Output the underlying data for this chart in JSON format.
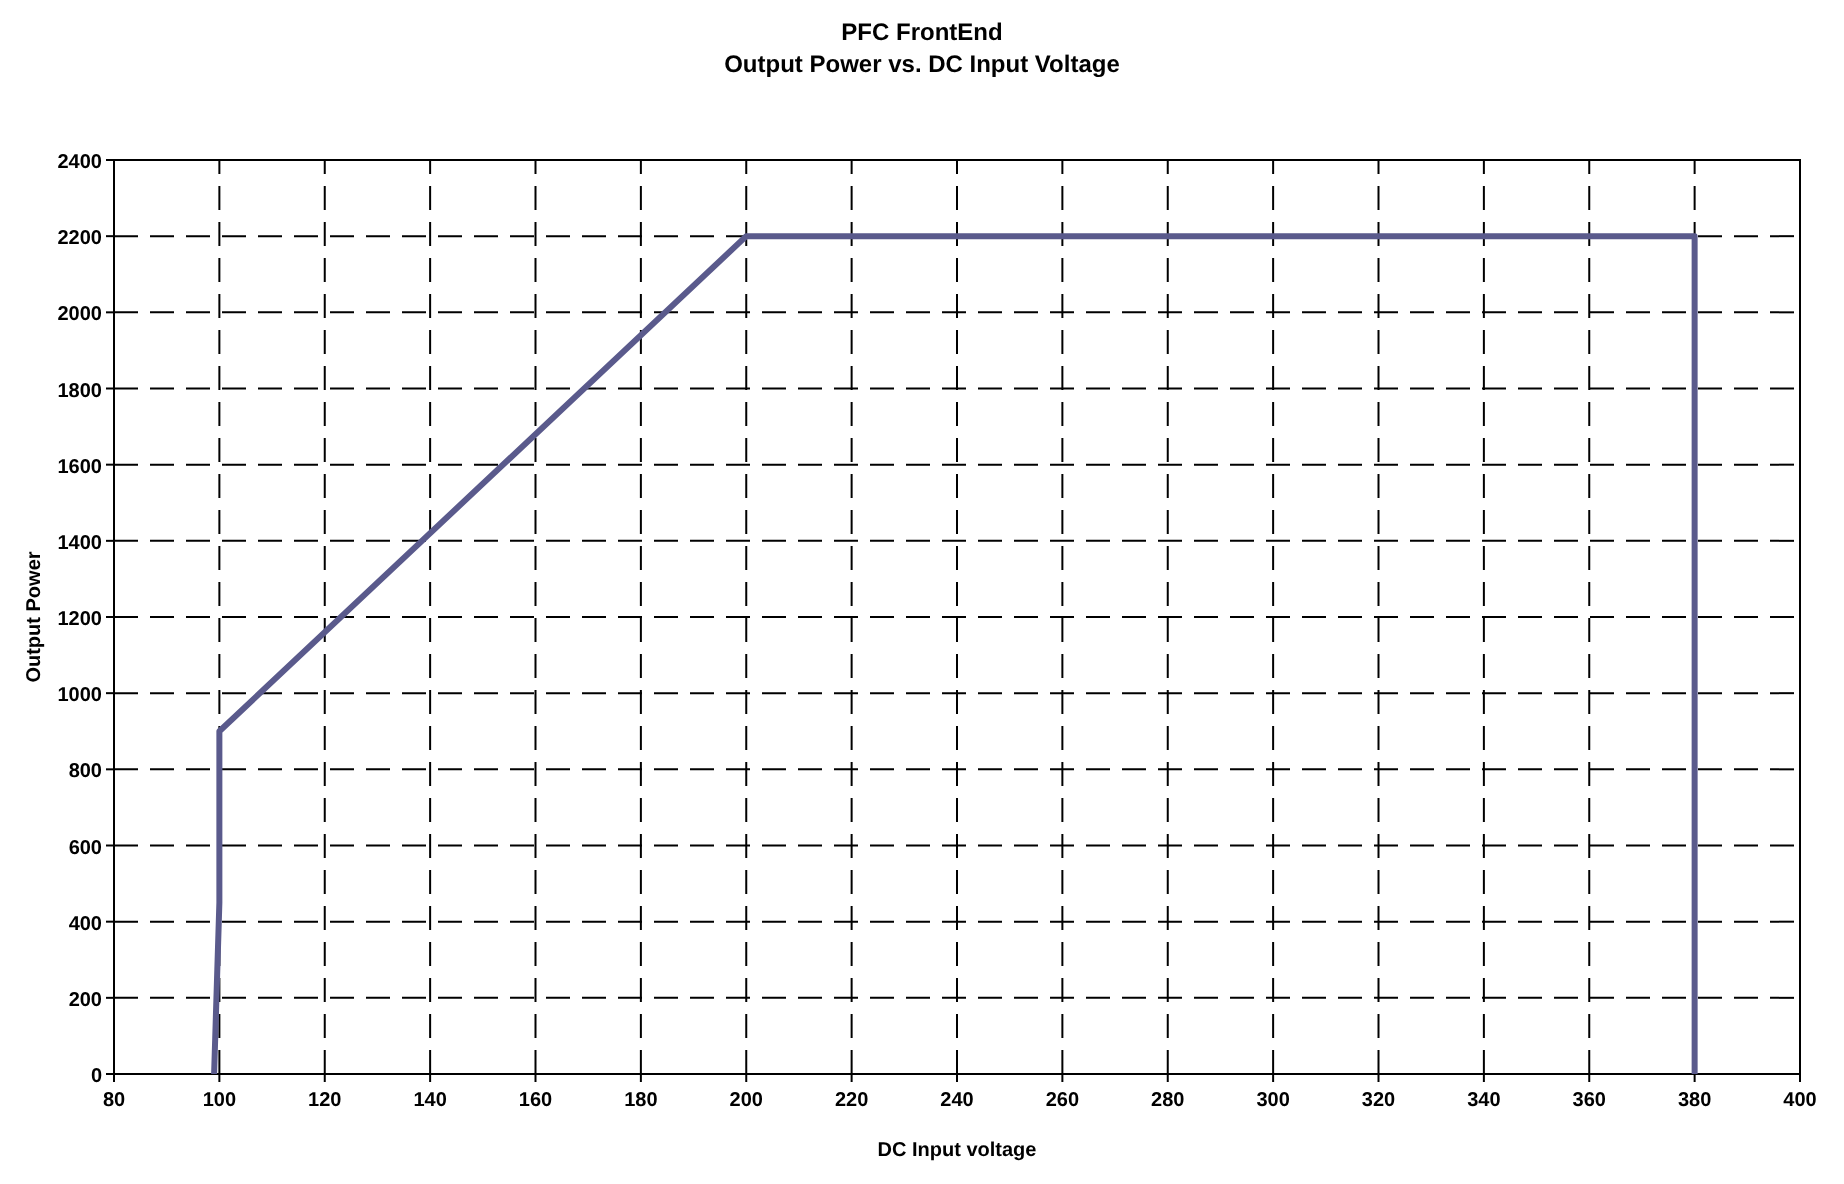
{
  "chart_data": {
    "type": "line",
    "title": "PFC FrontEnd",
    "subtitle": "Output Power vs. DC Input Voltage",
    "xlabel": "DC Input voltage",
    "ylabel": "Output Power",
    "x": [
      99,
      100,
      100,
      200,
      380,
      380,
      380
    ],
    "series": [
      {
        "color": "#5a5a8c",
        "values": [
          0,
          450,
          900,
          2200,
          2200,
          1100,
          0
        ]
      }
    ],
    "xlim": [
      80,
      400
    ],
    "xticks": [
      80,
      100,
      120,
      140,
      160,
      180,
      200,
      220,
      240,
      260,
      280,
      300,
      320,
      340,
      360,
      380,
      400
    ],
    "ylim": [
      0,
      2400
    ],
    "yticks": [
      0,
      200,
      400,
      600,
      800,
      1000,
      1200,
      1400,
      1600,
      1800,
      2000,
      2200,
      2400
    ],
    "grid": true,
    "line_style": "solid",
    "marker": "none"
  }
}
